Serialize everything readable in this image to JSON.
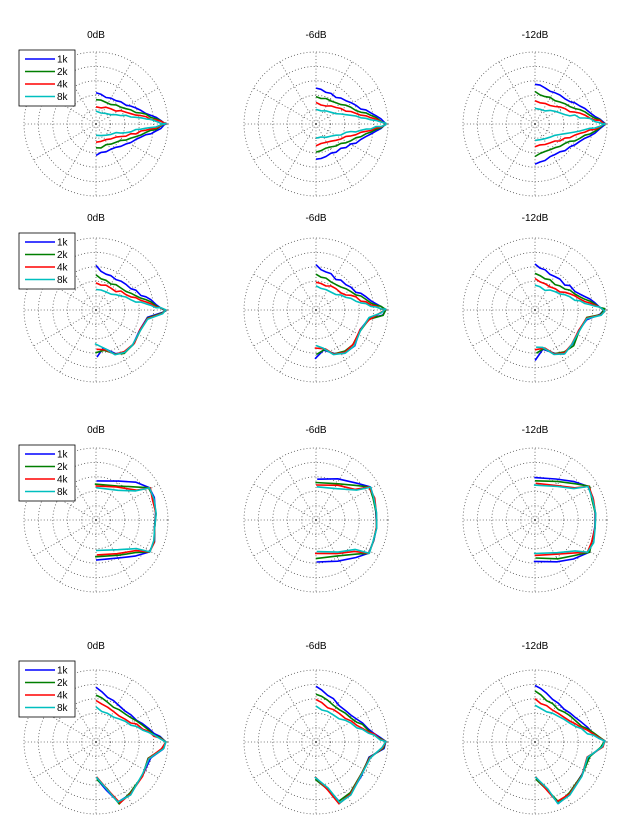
{
  "colors": {
    "1k": "#0000ff",
    "2k": "#007f00",
    "4k": "#ff0000",
    "8k": "#00bfbf"
  },
  "chart_data": {
    "type": "polar-grid",
    "columns": [
      "0dB",
      "-6dB",
      "-12dB"
    ],
    "rows": 4,
    "legend": [
      "1k",
      "2k",
      "4k",
      "8k"
    ],
    "legend_placement": "top-left of first panel in each row",
    "grid": true,
    "rings": 5,
    "angle_spokes_deg": 30,
    "row_shapes": [
      "narrow forward lobe",
      "asymmetric lobe, strong lower-side",
      "broad wide flat-front lobe",
      "wide fan with lower lobe"
    ],
    "panels": [
      {
        "row": 0,
        "col": 0,
        "title": "0dB",
        "widths": [
          0.43,
          0.34,
          0.25,
          0.17
        ]
      },
      {
        "row": 0,
        "col": 1,
        "title": "-6dB",
        "widths": [
          0.5,
          0.39,
          0.29,
          0.2
        ]
      },
      {
        "row": 0,
        "col": 2,
        "title": "-12dB",
        "widths": [
          0.56,
          0.44,
          0.32,
          0.22
        ]
      },
      {
        "row": 1,
        "col": 0,
        "title": "0dB",
        "widths": [
          0.6,
          0.48,
          0.38,
          0.3
        ]
      },
      {
        "row": 1,
        "col": 1,
        "title": "-6dB",
        "widths": [
          0.62,
          0.5,
          0.4,
          0.32
        ]
      },
      {
        "row": 1,
        "col": 2,
        "title": "-12dB",
        "widths": [
          0.64,
          0.52,
          0.42,
          0.34
        ]
      },
      {
        "row": 2,
        "col": 0,
        "title": "0dB",
        "widths": [
          0.55,
          0.5,
          0.47,
          0.44
        ]
      },
      {
        "row": 2,
        "col": 1,
        "title": "-6dB",
        "widths": [
          0.57,
          0.52,
          0.48,
          0.45
        ]
      },
      {
        "row": 2,
        "col": 2,
        "title": "-12dB",
        "widths": [
          0.59,
          0.54,
          0.5,
          0.47
        ]
      },
      {
        "row": 3,
        "col": 0,
        "title": "0dB",
        "widths": [
          0.76,
          0.66,
          0.56,
          0.48
        ]
      },
      {
        "row": 3,
        "col": 1,
        "title": "-6dB",
        "widths": [
          0.78,
          0.68,
          0.58,
          0.5
        ]
      },
      {
        "row": 3,
        "col": 2,
        "title": "-12dB",
        "widths": [
          0.8,
          0.7,
          0.6,
          0.52
        ]
      }
    ]
  }
}
